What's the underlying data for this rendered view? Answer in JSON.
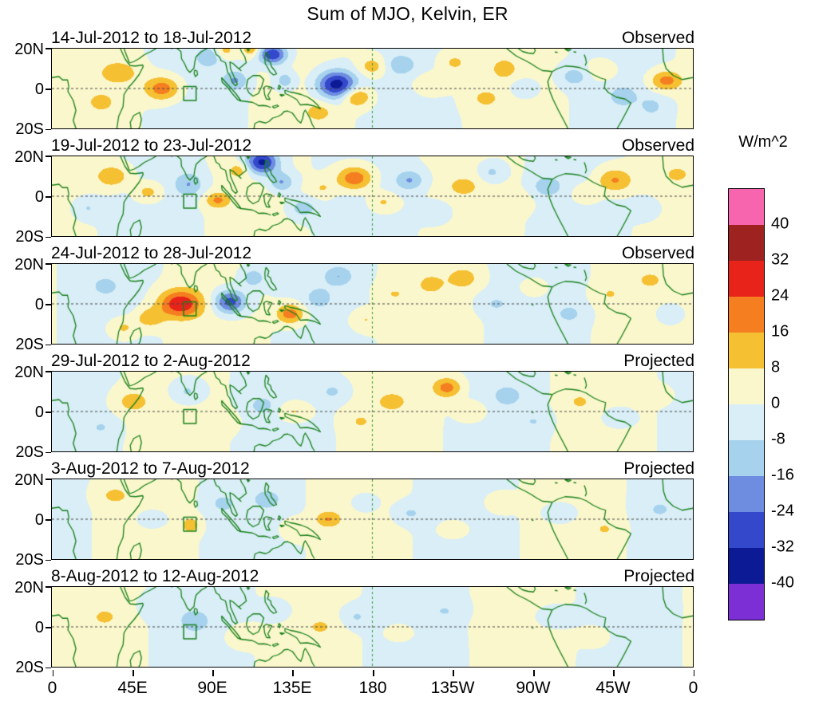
{
  "chart_data": {
    "type": "heatmap",
    "title": "Sum of MJO, Kelvin, ER",
    "x_tick_labels": [
      "0",
      "45E",
      "90E",
      "135E",
      "180",
      "135W",
      "90W",
      "45W",
      "0"
    ],
    "y_tick_labels": [
      "20N",
      "0",
      "20S"
    ],
    "lon_range": [
      0,
      360
    ],
    "lat_range": [
      -20,
      20
    ],
    "grid": {
      "equator_dashed_lat": 0,
      "dateline_dashed_lon": 180
    },
    "coast_color": "#17801a",
    "colorbar": {
      "unit": "W/m^2",
      "levels": [
        -40,
        -32,
        -24,
        -16,
        -8,
        0,
        8,
        16,
        24,
        32,
        40
      ],
      "tick_labels": [
        "40",
        "32",
        "24",
        "16",
        "8",
        "0",
        "-8",
        "-16",
        "-24",
        "-32",
        "-40"
      ],
      "colors": [
        "#7b2fd4",
        "#0d1a96",
        "#3448cb",
        "#6e8ce0",
        "#a6d2ed",
        "#d9eef7",
        "#fbf7cc",
        "#f5c032",
        "#f57e20",
        "#e8231a",
        "#9e2220",
        "#f765ae"
      ]
    },
    "region_box": {
      "lon_min": 74,
      "lon_max": 81,
      "lat_min": -6,
      "lat_max": 1
    },
    "feature_format": [
      "lon_deg",
      "lat_deg",
      "amplitude_w_m2",
      "sigma_lon_deg",
      "sigma_lat_deg"
    ],
    "panels": [
      {
        "date_range": "14-Jul-2012 to 18-Jul-2012",
        "label": "Observed",
        "background": {
          "amp": 3,
          "k": 3,
          "phase": 0.5
        },
        "features": [
          [
            62,
            0,
            22,
            10,
            6
          ],
          [
            38,
            8,
            12,
            11,
            6
          ],
          [
            28,
            -7,
            9,
            8,
            5
          ],
          [
            88,
            16,
            -14,
            7,
            5
          ],
          [
            103,
            4,
            -16,
            7,
            5
          ],
          [
            124,
            17,
            -32,
            8,
            5
          ],
          [
            112,
            20,
            16,
            5,
            4
          ],
          [
            131,
            4,
            -14,
            6,
            5
          ],
          [
            97,
            19,
            12,
            6,
            4
          ],
          [
            160,
            2,
            -38,
            11,
            7
          ],
          [
            171,
            -4,
            20,
            8,
            5
          ],
          [
            180,
            11,
            13,
            8,
            5
          ],
          [
            150,
            -12,
            10,
            8,
            5
          ],
          [
            196,
            12,
            -13,
            8,
            5
          ],
          [
            212,
            2,
            8,
            10,
            6
          ],
          [
            226,
            13,
            10,
            8,
            5
          ],
          [
            243,
            -5,
            8,
            10,
            6
          ],
          [
            254,
            10,
            11,
            7,
            5
          ],
          [
            265,
            0,
            -9,
            8,
            5
          ],
          [
            293,
            6,
            -12,
            8,
            5
          ],
          [
            309,
            9,
            9,
            8,
            5
          ],
          [
            321,
            -4,
            -11,
            8,
            5
          ],
          [
            345,
            4,
            20,
            9,
            5
          ],
          [
            337,
            -9,
            -9,
            7,
            5
          ]
        ]
      },
      {
        "date_range": "19-Jul-2012 to 23-Jul-2012",
        "label": "Observed",
        "background": {
          "amp": 3,
          "k": 3,
          "phase": 1.8
        },
        "features": [
          [
            34,
            10,
            15,
            10,
            6
          ],
          [
            54,
            2,
            13,
            8,
            5
          ],
          [
            20,
            -6,
            -9,
            8,
            5
          ],
          [
            77,
            6,
            -15,
            8,
            6
          ],
          [
            93,
            -2,
            17,
            7,
            4
          ],
          [
            118,
            17,
            -36,
            9,
            6
          ],
          [
            129,
            7,
            -18,
            7,
            5
          ],
          [
            105,
            13,
            12,
            6,
            4
          ],
          [
            141,
            -6,
            -13,
            8,
            5
          ],
          [
            152,
            4,
            9,
            7,
            5
          ],
          [
            170,
            9,
            24,
            10,
            6
          ],
          [
            186,
            -3,
            11,
            8,
            5
          ],
          [
            201,
            8,
            -16,
            8,
            5
          ],
          [
            216,
            -8,
            -9,
            8,
            5
          ],
          [
            231,
            5,
            9,
            9,
            5
          ],
          [
            247,
            12,
            -11,
            7,
            5
          ],
          [
            261,
            -3,
            7,
            8,
            5
          ],
          [
            278,
            5,
            -13,
            8,
            5
          ],
          [
            300,
            1,
            9,
            8,
            5
          ],
          [
            316,
            8,
            18,
            10,
            6
          ],
          [
            333,
            -6,
            -9,
            8,
            5
          ],
          [
            351,
            11,
            9,
            7,
            4
          ]
        ]
      },
      {
        "date_range": "24-Jul-2012 to 28-Jul-2012",
        "label": "Observed",
        "background": {
          "amp": 3,
          "k": 3,
          "phase": 3.0
        },
        "features": [
          [
            72,
            0,
            30,
            12,
            7
          ],
          [
            55,
            -7,
            14,
            8,
            5
          ],
          [
            40,
            -12,
            11,
            8,
            5
          ],
          [
            30,
            9,
            -9,
            8,
            5
          ],
          [
            100,
            1,
            -30,
            9,
            6
          ],
          [
            113,
            13,
            -14,
            7,
            5
          ],
          [
            134,
            -5,
            22,
            8,
            5
          ],
          [
            150,
            3,
            -11,
            7,
            5
          ],
          [
            161,
            14,
            -14,
            8,
            5
          ],
          [
            176,
            -8,
            9,
            8,
            5
          ],
          [
            192,
            5,
            7,
            9,
            5
          ],
          [
            213,
            10,
            9,
            8,
            5
          ],
          [
            231,
            13,
            13,
            8,
            5
          ],
          [
            249,
            0,
            -8,
            9,
            5
          ],
          [
            271,
            8,
            7,
            8,
            5
          ],
          [
            291,
            -5,
            -9,
            8,
            5
          ],
          [
            313,
            5,
            7,
            8,
            5
          ],
          [
            336,
            12,
            9,
            7,
            4
          ],
          [
            346,
            -5,
            -7,
            7,
            5
          ]
        ]
      },
      {
        "date_range": "29-Jul-2012 to 2-Aug-2012",
        "label": "Projected",
        "background": {
          "amp": 3,
          "k": 3,
          "phase": 4.2
        },
        "features": [
          [
            45,
            5,
            11,
            10,
            6
          ],
          [
            28,
            -8,
            -7,
            8,
            5
          ],
          [
            76,
            10,
            -11,
            9,
            6
          ],
          [
            96,
            -5,
            7,
            8,
            5
          ],
          [
            118,
            3,
            -9,
            8,
            5
          ],
          [
            136,
            0,
            11,
            9,
            5
          ],
          [
            158,
            10,
            -9,
            8,
            5
          ],
          [
            173,
            -5,
            7,
            8,
            5
          ],
          [
            191,
            5,
            9,
            9,
            5
          ],
          [
            222,
            12,
            20,
            8,
            5
          ],
          [
            236,
            0,
            9,
            8,
            5
          ],
          [
            256,
            8,
            -11,
            8,
            5
          ],
          [
            271,
            -5,
            -7,
            8,
            5
          ],
          [
            296,
            5,
            7,
            8,
            5
          ],
          [
            318,
            -3,
            -9,
            9,
            5
          ],
          [
            341,
            8,
            7,
            7,
            4
          ]
        ]
      },
      {
        "date_range": "3-Aug-2012 to 7-Aug-2012",
        "label": "Projected",
        "background": {
          "amp": 3,
          "k": 3,
          "phase": 5.1
        },
        "features": [
          [
            35,
            12,
            9,
            9,
            5
          ],
          [
            56,
            0,
            -7,
            9,
            5
          ],
          [
            78,
            -3,
            13,
            5,
            4
          ],
          [
            96,
            8,
            -9,
            8,
            5
          ],
          [
            121,
            10,
            -11,
            8,
            5
          ],
          [
            136,
            -5,
            7,
            8,
            5
          ],
          [
            155,
            0,
            15,
            7,
            4
          ],
          [
            176,
            8,
            -7,
            8,
            5
          ],
          [
            201,
            3,
            -9,
            9,
            5
          ],
          [
            226,
            -5,
            7,
            9,
            5
          ],
          [
            251,
            8,
            7,
            8,
            5
          ],
          [
            286,
            3,
            -9,
            9,
            5
          ],
          [
            311,
            -5,
            7,
            8,
            5
          ],
          [
            341,
            5,
            -7,
            8,
            5
          ]
        ]
      },
      {
        "date_range": "8-Aug-2012 to 12-Aug-2012",
        "label": "Projected",
        "background": {
          "amp": 2.5,
          "k": 3,
          "phase": 0.3
        },
        "features": [
          [
            30,
            5,
            7,
            10,
            6
          ],
          [
            60,
            10,
            -7,
            9,
            5
          ],
          [
            80,
            3,
            -11,
            9,
            6
          ],
          [
            106,
            -5,
            7,
            8,
            5
          ],
          [
            126,
            8,
            -7,
            8,
            5
          ],
          [
            151,
            0,
            7,
            9,
            5
          ],
          [
            171,
            5,
            -9,
            8,
            5
          ],
          [
            196,
            -3,
            5,
            9,
            5
          ],
          [
            221,
            8,
            -7,
            9,
            5
          ],
          [
            251,
            0,
            5,
            9,
            5
          ],
          [
            281,
            5,
            -7,
            9,
            5
          ],
          [
            306,
            -5,
            5,
            8,
            5
          ],
          [
            336,
            8,
            -5,
            8,
            5
          ]
        ]
      }
    ]
  }
}
